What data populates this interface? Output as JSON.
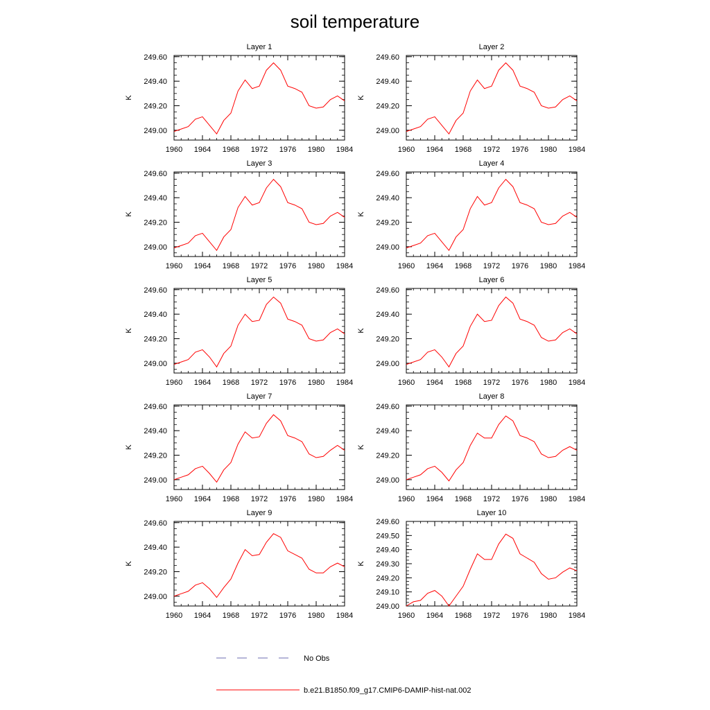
{
  "page": {
    "title": "soil temperature"
  },
  "legend": {
    "placement": "bottom-center",
    "entries": [
      {
        "label": "No Obs",
        "color": "#6b6bb0",
        "style": "dashed"
      },
      {
        "label": "b.e21.B1850.f09_g17.CMIP6-DAMIP-hist-nat.002",
        "color": "#ff0000",
        "style": "solid"
      }
    ]
  },
  "chart_data": [
    {
      "type": "line",
      "title": "Layer 1",
      "ylabel": "K",
      "xlim": [
        1960,
        1984
      ],
      "ylim": [
        248.92,
        249.61
      ],
      "xticks": [
        1960,
        1964,
        1968,
        1972,
        1976,
        1980,
        1984
      ],
      "xtick_labels": [
        "1960",
        "1964",
        "1968",
        "1972",
        "1976",
        "1980",
        "1984"
      ],
      "yticks": [
        249.0,
        249.2,
        249.4,
        249.6
      ],
      "ytick_labels": [
        "249.00",
        "249.20",
        "249.40",
        "249.60"
      ],
      "series": [
        {
          "name": "b.e21.B1850.f09_g17.CMIP6-DAMIP-hist-nat.002",
          "color": "#ff0000",
          "x": [
            1960,
            1961,
            1962,
            1963,
            1964,
            1965,
            1966,
            1967,
            1968,
            1969,
            1970,
            1971,
            1972,
            1973,
            1974,
            1975,
            1976,
            1977,
            1978,
            1979,
            1980,
            1981,
            1982,
            1983,
            1984
          ],
          "y": [
            248.99,
            249.01,
            249.03,
            249.09,
            249.11,
            249.04,
            248.97,
            249.08,
            249.14,
            249.32,
            249.41,
            249.34,
            249.36,
            249.49,
            249.55,
            249.49,
            249.36,
            249.34,
            249.31,
            249.2,
            249.18,
            249.19,
            249.25,
            249.28,
            249.24
          ]
        }
      ]
    },
    {
      "type": "line",
      "title": "Layer 2",
      "ylabel": "K",
      "xlim": [
        1960,
        1984
      ],
      "ylim": [
        248.92,
        249.61
      ],
      "xticks": [
        1960,
        1964,
        1968,
        1972,
        1976,
        1980,
        1984
      ],
      "xtick_labels": [
        "1960",
        "1964",
        "1968",
        "1972",
        "1976",
        "1980",
        "1984"
      ],
      "yticks": [
        249.0,
        249.2,
        249.4,
        249.6
      ],
      "ytick_labels": [
        "249.00",
        "249.20",
        "249.40",
        "249.60"
      ],
      "series": [
        {
          "name": "b.e21.B1850.f09_g17.CMIP6-DAMIP-hist-nat.002",
          "color": "#ff0000",
          "x": [
            1960,
            1961,
            1962,
            1963,
            1964,
            1965,
            1966,
            1967,
            1968,
            1969,
            1970,
            1971,
            1972,
            1973,
            1974,
            1975,
            1976,
            1977,
            1978,
            1979,
            1980,
            1981,
            1982,
            1983,
            1984
          ],
          "y": [
            248.99,
            249.01,
            249.03,
            249.09,
            249.11,
            249.04,
            248.97,
            249.08,
            249.14,
            249.32,
            249.41,
            249.34,
            249.36,
            249.49,
            249.55,
            249.49,
            249.36,
            249.34,
            249.31,
            249.2,
            249.18,
            249.19,
            249.25,
            249.28,
            249.24
          ]
        }
      ]
    },
    {
      "type": "line",
      "title": "Layer 3",
      "ylabel": "K",
      "xlim": [
        1960,
        1984
      ],
      "ylim": [
        248.92,
        249.61
      ],
      "xticks": [
        1960,
        1964,
        1968,
        1972,
        1976,
        1980,
        1984
      ],
      "xtick_labels": [
        "1960",
        "1964",
        "1968",
        "1972",
        "1976",
        "1980",
        "1984"
      ],
      "yticks": [
        249.0,
        249.2,
        249.4,
        249.6
      ],
      "ytick_labels": [
        "249.00",
        "249.20",
        "249.40",
        "249.60"
      ],
      "series": [
        {
          "name": "b.e21.B1850.f09_g17.CMIP6-DAMIP-hist-nat.002",
          "color": "#ff0000",
          "x": [
            1960,
            1961,
            1962,
            1963,
            1964,
            1965,
            1966,
            1967,
            1968,
            1969,
            1970,
            1971,
            1972,
            1973,
            1974,
            1975,
            1976,
            1977,
            1978,
            1979,
            1980,
            1981,
            1982,
            1983,
            1984
          ],
          "y": [
            248.99,
            249.01,
            249.03,
            249.09,
            249.11,
            249.04,
            248.97,
            249.08,
            249.14,
            249.32,
            249.41,
            249.34,
            249.36,
            249.48,
            249.55,
            249.49,
            249.36,
            249.34,
            249.31,
            249.2,
            249.18,
            249.19,
            249.25,
            249.28,
            249.24
          ]
        }
      ]
    },
    {
      "type": "line",
      "title": "Layer 4",
      "ylabel": "K",
      "xlim": [
        1960,
        1984
      ],
      "ylim": [
        248.92,
        249.61
      ],
      "xticks": [
        1960,
        1964,
        1968,
        1972,
        1976,
        1980,
        1984
      ],
      "xtick_labels": [
        "1960",
        "1964",
        "1968",
        "1972",
        "1976",
        "1980",
        "1984"
      ],
      "yticks": [
        249.0,
        249.2,
        249.4,
        249.6
      ],
      "ytick_labels": [
        "249.00",
        "249.20",
        "249.40",
        "249.60"
      ],
      "series": [
        {
          "name": "b.e21.B1850.f09_g17.CMIP6-DAMIP-hist-nat.002",
          "color": "#ff0000",
          "x": [
            1960,
            1961,
            1962,
            1963,
            1964,
            1965,
            1966,
            1967,
            1968,
            1969,
            1970,
            1971,
            1972,
            1973,
            1974,
            1975,
            1976,
            1977,
            1978,
            1979,
            1980,
            1981,
            1982,
            1983,
            1984
          ],
          "y": [
            248.99,
            249.01,
            249.03,
            249.09,
            249.11,
            249.04,
            248.97,
            249.08,
            249.14,
            249.31,
            249.41,
            249.34,
            249.36,
            249.48,
            249.55,
            249.49,
            249.36,
            249.34,
            249.31,
            249.2,
            249.18,
            249.19,
            249.25,
            249.28,
            249.24
          ]
        }
      ]
    },
    {
      "type": "line",
      "title": "Layer 5",
      "ylabel": "K",
      "xlim": [
        1960,
        1984
      ],
      "ylim": [
        248.92,
        249.61
      ],
      "xticks": [
        1960,
        1964,
        1968,
        1972,
        1976,
        1980,
        1984
      ],
      "xtick_labels": [
        "1960",
        "1964",
        "1968",
        "1972",
        "1976",
        "1980",
        "1984"
      ],
      "yticks": [
        249.0,
        249.2,
        249.4,
        249.6
      ],
      "ytick_labels": [
        "249.00",
        "249.20",
        "249.40",
        "249.60"
      ],
      "series": [
        {
          "name": "b.e21.B1850.f09_g17.CMIP6-DAMIP-hist-nat.002",
          "color": "#ff0000",
          "x": [
            1960,
            1961,
            1962,
            1963,
            1964,
            1965,
            1966,
            1967,
            1968,
            1969,
            1970,
            1971,
            1972,
            1973,
            1974,
            1975,
            1976,
            1977,
            1978,
            1979,
            1980,
            1981,
            1982,
            1983,
            1984
          ],
          "y": [
            248.99,
            249.01,
            249.03,
            249.09,
            249.11,
            249.05,
            248.97,
            249.08,
            249.14,
            249.31,
            249.4,
            249.34,
            249.35,
            249.48,
            249.54,
            249.49,
            249.36,
            249.34,
            249.31,
            249.2,
            249.18,
            249.19,
            249.25,
            249.28,
            249.24
          ]
        }
      ]
    },
    {
      "type": "line",
      "title": "Layer 6",
      "ylabel": "K",
      "xlim": [
        1960,
        1984
      ],
      "ylim": [
        248.92,
        249.61
      ],
      "xticks": [
        1960,
        1964,
        1968,
        1972,
        1976,
        1980,
        1984
      ],
      "xtick_labels": [
        "1960",
        "1964",
        "1968",
        "1972",
        "1976",
        "1980",
        "1984"
      ],
      "yticks": [
        249.0,
        249.2,
        249.4,
        249.6
      ],
      "ytick_labels": [
        "249.00",
        "249.20",
        "249.40",
        "249.60"
      ],
      "series": [
        {
          "name": "b.e21.B1850.f09_g17.CMIP6-DAMIP-hist-nat.002",
          "color": "#ff0000",
          "x": [
            1960,
            1961,
            1962,
            1963,
            1964,
            1965,
            1966,
            1967,
            1968,
            1969,
            1970,
            1971,
            1972,
            1973,
            1974,
            1975,
            1976,
            1977,
            1978,
            1979,
            1980,
            1981,
            1982,
            1983,
            1984
          ],
          "y": [
            248.99,
            249.01,
            249.03,
            249.09,
            249.11,
            249.05,
            248.97,
            249.08,
            249.14,
            249.3,
            249.4,
            249.34,
            249.35,
            249.47,
            249.54,
            249.49,
            249.36,
            249.34,
            249.31,
            249.21,
            249.18,
            249.19,
            249.25,
            249.28,
            249.24
          ]
        }
      ]
    },
    {
      "type": "line",
      "title": "Layer 7",
      "ylabel": "K",
      "xlim": [
        1960,
        1984
      ],
      "ylim": [
        248.92,
        249.61
      ],
      "xticks": [
        1960,
        1964,
        1968,
        1972,
        1976,
        1980,
        1984
      ],
      "xtick_labels": [
        "1960",
        "1964",
        "1968",
        "1972",
        "1976",
        "1980",
        "1984"
      ],
      "yticks": [
        249.0,
        249.2,
        249.4,
        249.6
      ],
      "ytick_labels": [
        "249.00",
        "249.20",
        "249.40",
        "249.60"
      ],
      "series": [
        {
          "name": "b.e21.B1850.f09_g17.CMIP6-DAMIP-hist-nat.002",
          "color": "#ff0000",
          "x": [
            1960,
            1961,
            1962,
            1963,
            1964,
            1965,
            1966,
            1967,
            1968,
            1969,
            1970,
            1971,
            1972,
            1973,
            1974,
            1975,
            1976,
            1977,
            1978,
            1979,
            1980,
            1981,
            1982,
            1983,
            1984
          ],
          "y": [
            249.0,
            249.02,
            249.04,
            249.09,
            249.11,
            249.05,
            248.98,
            249.08,
            249.14,
            249.29,
            249.39,
            249.34,
            249.35,
            249.46,
            249.53,
            249.48,
            249.36,
            249.34,
            249.31,
            249.21,
            249.18,
            249.19,
            249.24,
            249.28,
            249.24
          ]
        }
      ]
    },
    {
      "type": "line",
      "title": "Layer 8",
      "ylabel": "K",
      "xlim": [
        1960,
        1984
      ],
      "ylim": [
        248.92,
        249.61
      ],
      "xticks": [
        1960,
        1964,
        1968,
        1972,
        1976,
        1980,
        1984
      ],
      "xtick_labels": [
        "1960",
        "1964",
        "1968",
        "1972",
        "1976",
        "1980",
        "1984"
      ],
      "yticks": [
        249.0,
        249.2,
        249.4,
        249.6
      ],
      "ytick_labels": [
        "249.00",
        "249.20",
        "249.40",
        "249.60"
      ],
      "series": [
        {
          "name": "b.e21.B1850.f09_g17.CMIP6-DAMIP-hist-nat.002",
          "color": "#ff0000",
          "x": [
            1960,
            1961,
            1962,
            1963,
            1964,
            1965,
            1966,
            1967,
            1968,
            1969,
            1970,
            1971,
            1972,
            1973,
            1974,
            1975,
            1976,
            1977,
            1978,
            1979,
            1980,
            1981,
            1982,
            1983,
            1984
          ],
          "y": [
            249.0,
            249.02,
            249.04,
            249.09,
            249.11,
            249.06,
            248.99,
            249.08,
            249.14,
            249.28,
            249.38,
            249.34,
            249.34,
            249.45,
            249.52,
            249.48,
            249.36,
            249.34,
            249.31,
            249.21,
            249.18,
            249.19,
            249.24,
            249.27,
            249.24
          ]
        }
      ]
    },
    {
      "type": "line",
      "title": "Layer 9",
      "ylabel": "K",
      "xlim": [
        1960,
        1984
      ],
      "ylim": [
        248.92,
        249.61
      ],
      "xticks": [
        1960,
        1964,
        1968,
        1972,
        1976,
        1980,
        1984
      ],
      "xtick_labels": [
        "1960",
        "1964",
        "1968",
        "1972",
        "1976",
        "1980",
        "1984"
      ],
      "yticks": [
        249.0,
        249.2,
        249.4,
        249.6
      ],
      "ytick_labels": [
        "249.00",
        "249.20",
        "249.40",
        "249.60"
      ],
      "series": [
        {
          "name": "b.e21.B1850.f09_g17.CMIP6-DAMIP-hist-nat.002",
          "color": "#ff0000",
          "x": [
            1960,
            1961,
            1962,
            1963,
            1964,
            1965,
            1966,
            1967,
            1968,
            1969,
            1970,
            1971,
            1972,
            1973,
            1974,
            1975,
            1976,
            1977,
            1978,
            1979,
            1980,
            1981,
            1982,
            1983,
            1984
          ],
          "y": [
            249.0,
            249.02,
            249.04,
            249.09,
            249.11,
            249.06,
            248.99,
            249.07,
            249.14,
            249.27,
            249.38,
            249.33,
            249.34,
            249.44,
            249.51,
            249.48,
            249.37,
            249.34,
            249.31,
            249.22,
            249.19,
            249.19,
            249.24,
            249.27,
            249.24
          ]
        }
      ]
    },
    {
      "type": "line",
      "title": "Layer 10",
      "ylabel": "K",
      "xlim": [
        1960,
        1984
      ],
      "ylim": [
        249.0,
        249.6
      ],
      "xticks": [
        1960,
        1964,
        1968,
        1972,
        1976,
        1980,
        1984
      ],
      "xtick_labels": [
        "1960",
        "1964",
        "1968",
        "1972",
        "1976",
        "1980",
        "1984"
      ],
      "yticks": [
        249.0,
        249.1,
        249.2,
        249.3,
        249.4,
        249.5,
        249.6
      ],
      "ytick_labels": [
        "249.00",
        "249.10",
        "249.20",
        "249.30",
        "249.40",
        "249.50",
        "249.60"
      ],
      "series": [
        {
          "name": "b.e21.B1850.f09_g17.CMIP6-DAMIP-hist-nat.002",
          "color": "#ff0000",
          "x": [
            1960,
            1961,
            1962,
            1963,
            1964,
            1965,
            1966,
            1967,
            1968,
            1969,
            1970,
            1971,
            1972,
            1973,
            1974,
            1975,
            1976,
            1977,
            1978,
            1979,
            1980,
            1981,
            1982,
            1983,
            1984
          ],
          "y": [
            249.0,
            249.03,
            249.04,
            249.09,
            249.11,
            249.07,
            249.0,
            249.07,
            249.14,
            249.26,
            249.37,
            249.33,
            249.33,
            249.44,
            249.51,
            249.48,
            249.37,
            249.34,
            249.31,
            249.23,
            249.19,
            249.2,
            249.24,
            249.27,
            249.25
          ]
        }
      ]
    }
  ]
}
